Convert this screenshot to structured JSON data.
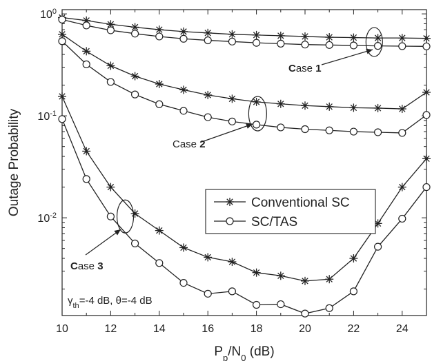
{
  "chart_data": {
    "type": "line",
    "xlabel": {
      "main": "P",
      "sub1": "p",
      "mid": "/N",
      "sub2": "0",
      "unit": " (dB)"
    },
    "ylabel": "Outage Probability",
    "xlim": [
      10,
      25
    ],
    "ylim": [
      0.0011,
      1.1
    ],
    "yscale": "log",
    "x_ticks": [
      10,
      12,
      14,
      16,
      18,
      20,
      22,
      24
    ],
    "y_ticks": [
      {
        "base": "10",
        "exp": "0",
        "value": 1
      },
      {
        "base": "10",
        "exp": "-1",
        "value": 0.1
      },
      {
        "base": "10",
        "exp": "-2",
        "value": 0.01
      }
    ],
    "legend": {
      "position": "center-right",
      "entries": [
        {
          "label": "Conventional SC",
          "marker": "star"
        },
        {
          "label": "SC/TAS",
          "marker": "circle"
        }
      ]
    },
    "params_text": {
      "g": "γ",
      "g_sub": "th",
      "rest": "=-4 dB, θ=-4 dB"
    },
    "x": [
      10,
      11,
      12,
      13,
      14,
      15,
      16,
      17,
      18,
      19,
      20,
      21,
      22,
      23,
      24,
      25
    ],
    "cases": [
      {
        "label_prefix": "C",
        "label_mid": "ase ",
        "label_num": "1",
        "series": [
          {
            "name": "Conventional SC",
            "marker": "star",
            "values": [
              0.92,
              0.86,
              0.79,
              0.74,
              0.7,
              0.67,
              0.65,
              0.63,
              0.62,
              0.61,
              0.6,
              0.59,
              0.585,
              0.58,
              0.58,
              0.575
            ]
          },
          {
            "name": "SC/TAS",
            "marker": "circle",
            "values": [
              0.88,
              0.77,
              0.69,
              0.64,
              0.6,
              0.57,
              0.55,
              0.535,
              0.52,
              0.51,
              0.5,
              0.495,
              0.49,
              0.485,
              0.482,
              0.48
            ]
          }
        ]
      },
      {
        "label_prefix": "",
        "label_mid": "Case ",
        "label_num": "2",
        "series": [
          {
            "name": "Conventional SC",
            "marker": "star",
            "values": [
              0.63,
              0.43,
              0.31,
              0.245,
              0.205,
              0.18,
              0.16,
              0.147,
              0.137,
              0.131,
              0.126,
              0.123,
              0.12,
              0.119,
              0.117,
              0.17
            ]
          },
          {
            "name": "SC/TAS",
            "marker": "circle",
            "values": [
              0.54,
              0.32,
              0.215,
              0.162,
              0.13,
              0.112,
              0.097,
              0.088,
              0.082,
              0.077,
              0.074,
              0.072,
              0.07,
              0.069,
              0.068,
              0.102
            ]
          }
        ]
      },
      {
        "label_prefix": "C",
        "label_mid": "ase ",
        "label_num": "3",
        "series": [
          {
            "name": "Conventional SC",
            "marker": "star",
            "values": [
              0.155,
              0.045,
              0.02,
              0.011,
              0.0075,
              0.0051,
              0.0041,
              0.0037,
              0.0029,
              0.0027,
              0.0024,
              0.0025,
              0.004,
              0.0088,
              0.02,
              0.038
            ]
          },
          {
            "name": "SC/TAS",
            "marker": "circle",
            "values": [
              0.093,
              0.024,
              0.0103,
              0.0056,
              0.0036,
              0.0023,
              0.0018,
              0.0019,
              0.0014,
              0.00142,
              0.00115,
              0.0013,
              0.0019,
              0.0052,
              0.0098,
              0.02
            ]
          }
        ]
      }
    ],
    "annotation_targets": [
      {
        "ellipse_x": 22.85,
        "ellipse_y": 0.53
      },
      {
        "ellipse_x": 18.05,
        "ellipse_y": 0.105
      },
      {
        "ellipse_x": 12.6,
        "ellipse_y": 0.0103
      }
    ]
  }
}
